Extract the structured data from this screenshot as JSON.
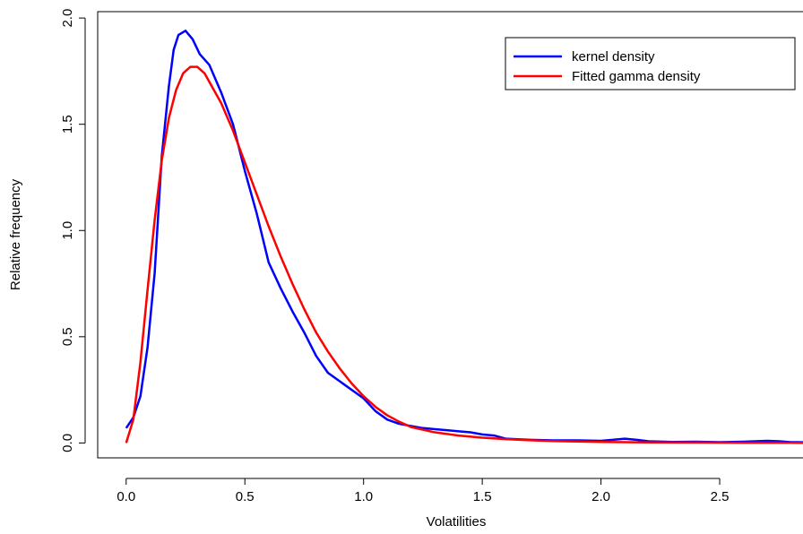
{
  "chart_data": {
    "type": "line",
    "title": "",
    "xlabel": "Volatilities",
    "ylabel": "Relative frequency",
    "xlim": [
      -0.12,
      2.9
    ],
    "ylim": [
      -0.07,
      2.03
    ],
    "xticks": [
      0.0,
      0.5,
      1.0,
      1.5,
      2.0,
      2.5
    ],
    "xtick_labels": [
      "0.0",
      "0.5",
      "1.0",
      "1.5",
      "2.0",
      "2.5"
    ],
    "yticks": [
      0.0,
      0.5,
      1.0,
      1.5,
      2.0
    ],
    "ytick_labels": [
      "0.0",
      "0.5",
      "1.0",
      "1.5",
      "2.0"
    ],
    "grid": false,
    "legend_position": "top-right",
    "series": [
      {
        "name": "kernel density",
        "color": "#0000ff",
        "x": [
          0.0,
          0.03,
          0.06,
          0.09,
          0.12,
          0.15,
          0.18,
          0.2,
          0.22,
          0.25,
          0.28,
          0.31,
          0.35,
          0.4,
          0.45,
          0.5,
          0.55,
          0.6,
          0.65,
          0.7,
          0.75,
          0.8,
          0.85,
          0.9,
          0.95,
          1.0,
          1.05,
          1.1,
          1.15,
          1.2,
          1.25,
          1.3,
          1.35,
          1.4,
          1.45,
          1.5,
          1.55,
          1.6,
          1.7,
          1.8,
          1.9,
          2.0,
          2.05,
          2.1,
          2.15,
          2.2,
          2.3,
          2.4,
          2.5,
          2.6,
          2.7,
          2.75,
          2.8,
          2.9
        ],
        "y": [
          0.07,
          0.12,
          0.22,
          0.45,
          0.8,
          1.35,
          1.68,
          1.85,
          1.92,
          1.94,
          1.9,
          1.83,
          1.78,
          1.65,
          1.5,
          1.28,
          1.08,
          0.85,
          0.73,
          0.62,
          0.52,
          0.41,
          0.33,
          0.29,
          0.25,
          0.21,
          0.15,
          0.11,
          0.09,
          0.08,
          0.07,
          0.065,
          0.06,
          0.055,
          0.05,
          0.04,
          0.035,
          0.02,
          0.015,
          0.012,
          0.012,
          0.01,
          0.015,
          0.02,
          0.015,
          0.008,
          0.005,
          0.006,
          0.004,
          0.006,
          0.01,
          0.008,
          0.004,
          0.003
        ]
      },
      {
        "name": "Fitted gamma density",
        "color": "#ff0000",
        "x": [
          0.0,
          0.03,
          0.06,
          0.09,
          0.12,
          0.15,
          0.18,
          0.21,
          0.24,
          0.27,
          0.3,
          0.33,
          0.36,
          0.4,
          0.45,
          0.5,
          0.55,
          0.6,
          0.65,
          0.7,
          0.75,
          0.8,
          0.85,
          0.9,
          0.95,
          1.0,
          1.05,
          1.1,
          1.15,
          1.2,
          1.3,
          1.4,
          1.5,
          1.6,
          1.7,
          1.8,
          1.9,
          2.0,
          2.2,
          2.4,
          2.6,
          2.8,
          2.9
        ],
        "y": [
          0.0,
          0.11,
          0.38,
          0.72,
          1.05,
          1.33,
          1.53,
          1.66,
          1.74,
          1.77,
          1.77,
          1.74,
          1.68,
          1.6,
          1.47,
          1.32,
          1.17,
          1.02,
          0.88,
          0.75,
          0.63,
          0.52,
          0.43,
          0.35,
          0.28,
          0.22,
          0.17,
          0.13,
          0.1,
          0.075,
          0.05,
          0.035,
          0.025,
          0.018,
          0.013,
          0.009,
          0.007,
          0.005,
          0.003,
          0.002,
          0.001,
          0.001,
          0.0
        ]
      }
    ]
  }
}
